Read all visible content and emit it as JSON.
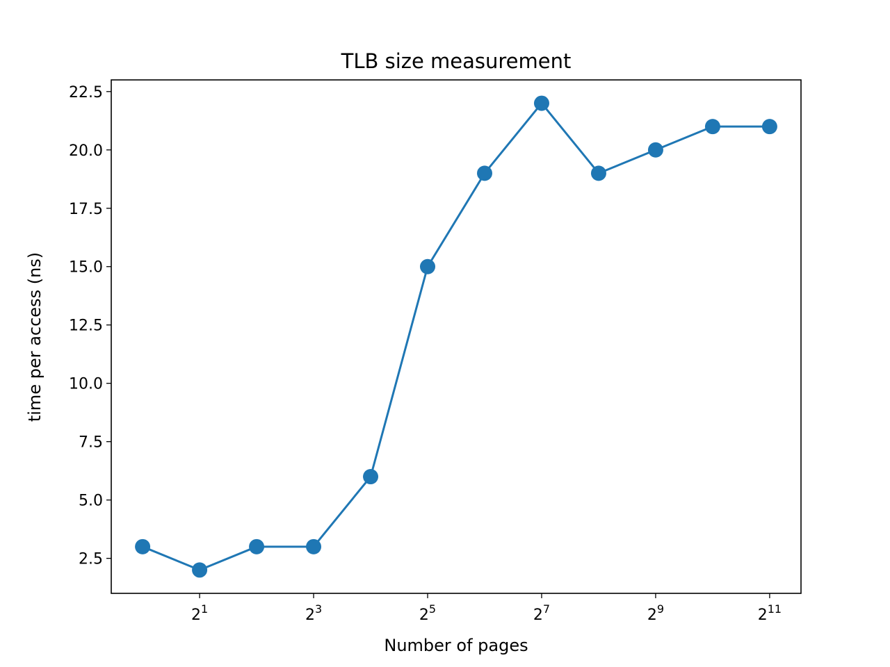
{
  "chart_data": {
    "type": "line",
    "title": "TLB size measurement",
    "xlabel": "Number of pages",
    "ylabel": "time per access (ns)",
    "x_scale": "log2",
    "x": [
      1,
      2,
      4,
      8,
      16,
      32,
      64,
      128,
      256,
      512,
      1024,
      2048
    ],
    "xticks": [
      {
        "value": 2,
        "base": "2",
        "exp": "1"
      },
      {
        "value": 8,
        "base": "2",
        "exp": "3"
      },
      {
        "value": 32,
        "base": "2",
        "exp": "5"
      },
      {
        "value": 128,
        "base": "2",
        "exp": "7"
      },
      {
        "value": 512,
        "base": "2",
        "exp": "9"
      },
      {
        "value": 2048,
        "base": "2",
        "exp": "11"
      }
    ],
    "series": [
      {
        "values": [
          3,
          2,
          3,
          3,
          6,
          15,
          19,
          22,
          19,
          20,
          21,
          21
        ],
        "color": "#1f77b4",
        "marker": "circle"
      }
    ],
    "yticks": [
      "2.5",
      "5.0",
      "7.5",
      "10.0",
      "12.5",
      "15.0",
      "17.5",
      "20.0",
      "22.5"
    ],
    "ylim": [
      1.0,
      23.0
    ],
    "grid": false,
    "legend": false
  }
}
